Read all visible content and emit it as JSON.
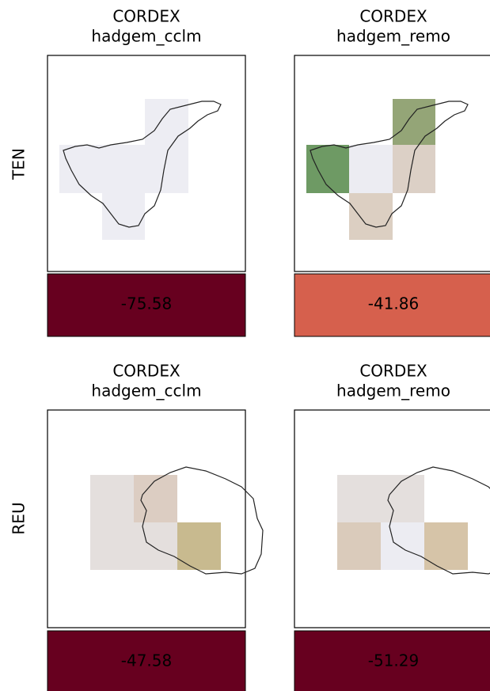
{
  "rows": [
    {
      "label": "TEN",
      "panels": [
        {
          "title": "CORDEX",
          "subtitle": "hadgem_cclm",
          "value": -75.58
        },
        {
          "title": "CORDEX",
          "subtitle": "hadgem_remo",
          "value": -41.86
        }
      ]
    },
    {
      "label": "REU",
      "panels": [
        {
          "title": "CORDEX",
          "subtitle": "hadgem_cclm",
          "value": -47.58
        },
        {
          "title": "CORDEX",
          "subtitle": "hadgem_remo",
          "value": -51.29
        }
      ]
    }
  ]
}
